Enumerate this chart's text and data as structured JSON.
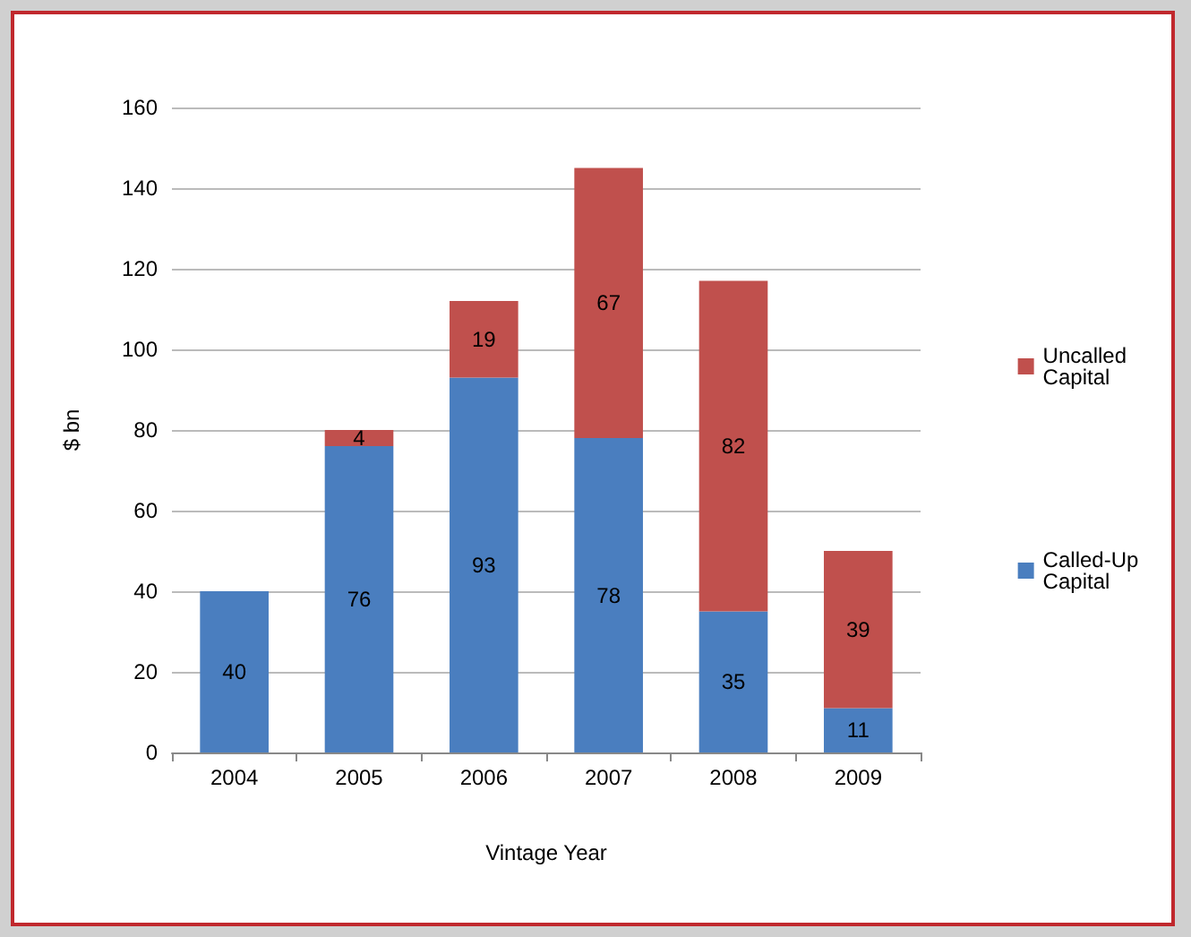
{
  "chart_data": {
    "type": "bar",
    "stacked": true,
    "xlabel": "Vintage Year",
    "ylabel": "$ bn",
    "categories": [
      "2004",
      "2005",
      "2006",
      "2007",
      "2008",
      "2009"
    ],
    "series": [
      {
        "name": "Called-Up Capital",
        "color": "#4a7ebf",
        "values": [
          40,
          76,
          93,
          78,
          35,
          11
        ]
      },
      {
        "name": "Uncalled Capital",
        "color": "#c0504d",
        "values": [
          null,
          4,
          19,
          67,
          82,
          39
        ]
      }
    ],
    "ylim": [
      0,
      160
    ],
    "yticks": [
      0,
      20,
      40,
      60,
      80,
      100,
      120,
      140,
      160
    ],
    "grid": "y",
    "legend": "right",
    "data_labels": true
  }
}
